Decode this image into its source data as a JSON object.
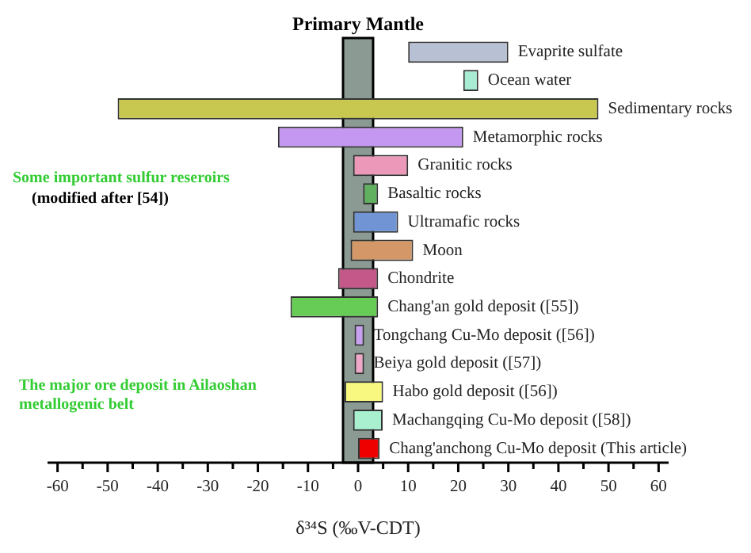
{
  "chart_data": {
    "type": "bar",
    "orientation": "horizontal",
    "tick_labels": "x",
    "xlabel": "δ³⁴S (‰V-CDT)",
    "categories": [
      "Evaprite sulfate",
      "Ocean water",
      "Sedimentary rocks",
      "Metamorphic rocks",
      "Granitic rocks",
      "Basaltic rocks",
      "Ultramafic rocks",
      "Moon",
      "Chondrite",
      "Chang'an gold deposit ([55])",
      "Tongchang Cu-Mo deposit ([56])",
      "Beiya gold deposit ([57])",
      "Habo gold deposit ([56])",
      "Machangqing Cu-Mo deposit ([58])",
      "Chang'anchong Cu-Mo deposit (This article)"
    ],
    "base": [
      10,
      21,
      -48,
      -16,
      -1,
      1,
      -1,
      -1.5,
      -4,
      -13.5,
      -0.7,
      -0.7,
      -2.7,
      -1,
      0
    ],
    "values": [
      20,
      3,
      96,
      37,
      11,
      3,
      9,
      12.5,
      8,
      17.5,
      1.9,
      1.9,
      7.7,
      5.9,
      4.3
    ],
    "colors": [
      "#b8c0d4",
      "#a8ecd4",
      "#c8c850",
      "#c498f0",
      "#ec98b8",
      "#60b060",
      "#7094d4",
      "#d49868",
      "#c45888",
      "#66cc55",
      "#c8a0f0",
      "#f0a8c8",
      "#f8f880",
      "#a8f0d0",
      "#ee0000"
    ],
    "xlim": [
      -62,
      62
    ],
    "xticks": [
      -60,
      {
        "value": -55,
        "label": null
      },
      -50,
      {
        "value": -45,
        "label": null
      },
      -40,
      {
        "value": -35,
        "label": null
      },
      -30,
      {
        "value": -25,
        "label": null
      },
      -20,
      {
        "value": -15,
        "label": null
      },
      -10,
      {
        "value": -5,
        "label": null
      },
      0,
      {
        "value": 5,
        "label": null
      },
      10,
      {
        "value": 15,
        "label": null
      },
      20,
      {
        "value": 25,
        "label": null
      },
      30,
      {
        "value": 35,
        "label": null
      },
      40,
      {
        "value": 45,
        "label": null
      },
      50,
      {
        "value": 55,
        "label": null
      },
      60
    ],
    "bands": [
      {
        "axis": "x",
        "from": -3,
        "to": 3,
        "label": "Primary Mantle",
        "color": "#8c9a94"
      }
    ],
    "grid": false,
    "legend": false,
    "annotations": [
      "Some important sulfur reseroirs",
      "(modified after [54])",
      "The major ore deposit in Ailaoshan metallogenic belt"
    ]
  }
}
